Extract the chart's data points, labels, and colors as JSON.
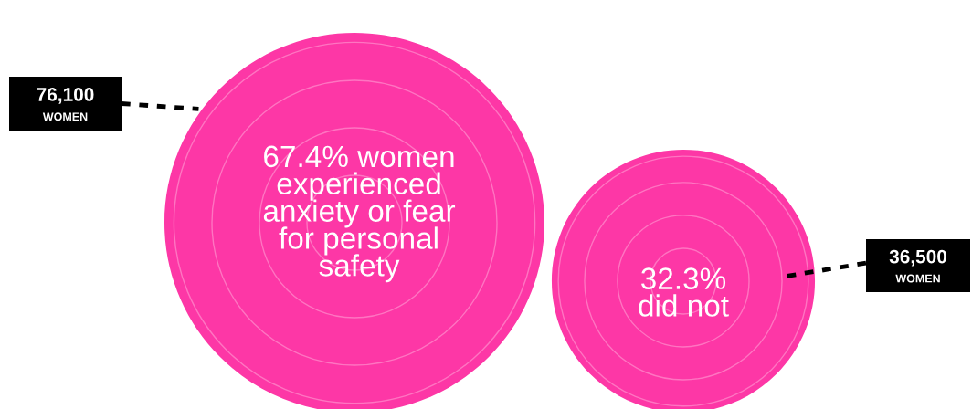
{
  "chart_data": {
    "type": "other",
    "categories": [
      null,
      null
    ],
    "values": [
      76100,
      36500
    ],
    "value_labels": [
      "76,100",
      "36,500"
    ],
    "colors": [
      "#fd37a6",
      "#fd37a6"
    ],
    "annotations": [
      "67.4% women\nexperienced\nanxiety or fear\nfor personal\nsafety",
      "32.3%\ndid not",
      "WOMEN",
      "WOMEN"
    ]
  }
}
